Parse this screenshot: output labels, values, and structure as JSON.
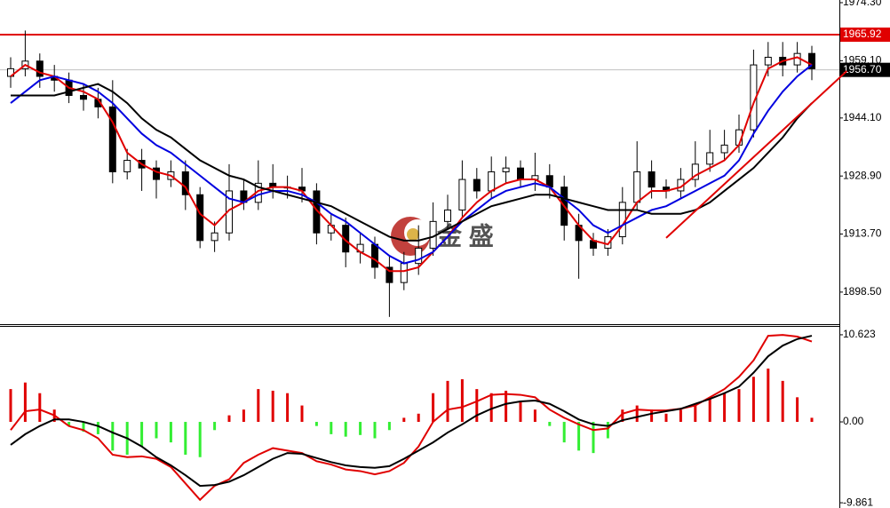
{
  "chart_data": [
    {
      "type": "candlestick",
      "watermark": "金 盛",
      "up_color": "#ffffff",
      "down_color": "#000000",
      "open": [
        1955,
        1957,
        1959,
        1955,
        1954,
        1950,
        1949,
        1947,
        1930,
        1933,
        1931,
        1928,
        1930,
        1924,
        1912,
        1914,
        1925,
        1922,
        1927,
        1926,
        1926,
        1925,
        1914,
        1916,
        1909,
        1911,
        1905,
        1901,
        1906,
        1910,
        1917,
        1920,
        1928,
        1925,
        1930,
        1931,
        1928,
        1929,
        1926,
        1916,
        1912,
        1910,
        1913,
        1922,
        1930,
        1926,
        1925,
        1928,
        1932,
        1935,
        1937,
        1941,
        1958,
        1960,
        1958,
        1961
      ],
      "high": [
        1960,
        1967,
        1961,
        1958,
        1956,
        1953,
        1952,
        1954,
        1936,
        1936,
        1933,
        1933,
        1933,
        1926,
        1917,
        1932,
        1928,
        1933,
        1932,
        1929,
        1931,
        1927,
        1919,
        1918,
        1914,
        1913,
        1908,
        1909,
        1916,
        1922,
        1924,
        1933,
        1931,
        1934,
        1934,
        1933,
        1935,
        1932,
        1929,
        1919,
        1914,
        1915,
        1926,
        1938,
        1933,
        1928,
        1931,
        1938,
        1941,
        1941,
        1945,
        1962,
        1964,
        1964,
        1964,
        1963
      ],
      "low": [
        1952,
        1955,
        1952,
        1951,
        1948,
        1946,
        1944,
        1927,
        1928,
        1925,
        1923,
        1926,
        1920,
        1910,
        1909,
        1912,
        1920,
        1920,
        1923,
        1923,
        1922,
        1911,
        1912,
        1905,
        1906,
        1902,
        1892,
        1899,
        1903,
        1908,
        1915,
        1918,
        1923,
        1923,
        1927,
        1926,
        1925,
        1923,
        1912,
        1902,
        1908,
        1908,
        1911,
        1920,
        1923,
        1923,
        1923,
        1926,
        1930,
        1933,
        1935,
        1939,
        1955,
        1955,
        1956,
        1954
      ],
      "close": [
        1957,
        1959,
        1955,
        1954,
        1950,
        1949,
        1947,
        1930,
        1933,
        1931,
        1928,
        1930,
        1924,
        1912,
        1914,
        1925,
        1922,
        1927,
        1926,
        1926,
        1925,
        1914,
        1916,
        1909,
        1911,
        1905,
        1901,
        1906,
        1910,
        1917,
        1920,
        1928,
        1925,
        1930,
        1931,
        1928,
        1929,
        1926,
        1916,
        1912,
        1910,
        1913,
        1922,
        1930,
        1926,
        1925,
        1928,
        1932,
        1935,
        1937,
        1941,
        1958,
        1960,
        1958,
        1961,
        1957
      ],
      "series": [
        {
          "color": "#e00000",
          "values": [
            1955,
            1958,
            1956,
            1955,
            1952,
            1951,
            1949,
            1943,
            1935,
            1932,
            1930,
            1929,
            1926,
            1919,
            1916,
            1920,
            1922,
            1925,
            1926,
            1926,
            1925,
            1920,
            1916,
            1912,
            1909,
            1907,
            1904,
            1904,
            1905,
            1909,
            1913,
            1918,
            1922,
            1925,
            1927,
            1928,
            1928,
            1926,
            1921,
            1916,
            1912,
            1911,
            1916,
            1922,
            1925,
            1925,
            1926,
            1929,
            1931,
            1933,
            1937,
            1948,
            1957,
            1959,
            1960,
            1958
          ]
        },
        {
          "color": "#0000e0",
          "values": [
            1948,
            1951,
            1954,
            1955,
            1954,
            1953,
            1951,
            1948,
            1944,
            1940,
            1937,
            1935,
            1932,
            1929,
            1926,
            1923,
            1922,
            1924,
            1925,
            1925,
            1924,
            1922,
            1919,
            1917,
            1914,
            1911,
            1908,
            1906,
            1907,
            1909,
            1913,
            1917,
            1920,
            1923,
            1925,
            1926,
            1927,
            1926,
            1923,
            1920,
            1916,
            1914,
            1916,
            1918,
            1920,
            1921,
            1923,
            1925,
            1927,
            1929,
            1933,
            1940,
            1946,
            1951,
            1955,
            1958
          ]
        },
        {
          "color": "#000000",
          "values": [
            1950,
            1950,
            1950,
            1950,
            1951,
            1952,
            1953,
            1951,
            1948,
            1944,
            1941,
            1939,
            1936,
            1933,
            1931,
            1929,
            1928,
            1926,
            1925,
            1924,
            1923,
            1922,
            1921,
            1919,
            1917,
            1915,
            1913,
            1912,
            1912,
            1913,
            1915,
            1917,
            1919,
            1921,
            1922,
            1923,
            1924,
            1924,
            1923,
            1922,
            1921,
            1920,
            1920,
            1920,
            1919,
            1919,
            1919,
            1920,
            1922,
            1925,
            1928,
            1931,
            1935,
            1939,
            1944,
            1948
          ]
        }
      ],
      "trendline": {
        "color": "#e00000",
        "x": [
          45,
          57.4
        ],
        "y": [
          1912.7,
          1956.4
        ]
      },
      "hlines": [
        {
          "value": 1965.92,
          "label": "1965.92",
          "color": "#e00000"
        },
        {
          "value": 1956.7,
          "label": "1956.70",
          "color": "#c0c0c0"
        }
      ],
      "ylim": [
        1890.1,
        1975.0
      ],
      "yticks": [
        {
          "value": 1974.3,
          "label": "1974.30"
        },
        {
          "value": 1959.1,
          "label": "1959.10"
        },
        {
          "value": 1944.1,
          "label": "1944.10"
        },
        {
          "value": 1928.9,
          "label": "1928.90"
        },
        {
          "value": 1913.7,
          "label": "1913.70"
        },
        {
          "value": 1898.5,
          "label": "1898.50"
        }
      ]
    },
    {
      "type": "macd",
      "up_color": "#e00000",
      "down_color": "#33ee33",
      "histogram": [
        4.0,
        4.8,
        3.5,
        1.5,
        -0.5,
        -1.2,
        -1.5,
        -3.5,
        -4.0,
        -3.0,
        -2.0,
        -2.5,
        -4.0,
        -4.3,
        -1.0,
        0.8,
        1.5,
        4.0,
        3.8,
        3.5,
        2.0,
        -0.5,
        -1.5,
        -1.8,
        -1.6,
        -2.0,
        -1.0,
        0.5,
        1.0,
        3.5,
        5.0,
        5.2,
        4.0,
        3.5,
        3.8,
        2.5,
        1.5,
        -0.5,
        -2.5,
        -3.5,
        -3.8,
        -2.0,
        1.5,
        2.0,
        1.5,
        1.0,
        1.5,
        2.0,
        3.0,
        3.5,
        4.0,
        5.5,
        6.5,
        5.0,
        3.0,
        0.5
      ],
      "series": [
        {
          "color": "#e00000",
          "values": [
            -1,
            1.3,
            1.5,
            0.8,
            -0.5,
            -1,
            -2,
            -4,
            -4.3,
            -4.2,
            -4.5,
            -5.5,
            -7.5,
            -9.5,
            -7.8,
            -7,
            -5,
            -4,
            -3.2,
            -3.5,
            -3.8,
            -4.8,
            -5.2,
            -5.8,
            -6,
            -6.4,
            -6,
            -5,
            -3,
            0,
            1.5,
            1.8,
            2.5,
            3.3,
            3.4,
            3.3,
            3.0,
            1.5,
            0.5,
            -0.3,
            -1,
            -0.8,
            1,
            1.5,
            1.4,
            1.4,
            1.6,
            2,
            3,
            4,
            5.5,
            7.5,
            10.5,
            10.6,
            10.4,
            9.8
          ]
        },
        {
          "color": "#000000",
          "values": [
            -2.8,
            -1.5,
            -0.5,
            0.3,
            0.3,
            0,
            -0.5,
            -1.3,
            -2,
            -3,
            -4.3,
            -5.3,
            -6.5,
            -7.8,
            -7.7,
            -7.3,
            -6.5,
            -5.5,
            -4.5,
            -3.8,
            -3.9,
            -4.4,
            -4.9,
            -5.3,
            -5.5,
            -5.6,
            -5.4,
            -4.5,
            -3.5,
            -2.5,
            -1.3,
            -0.3,
            0.8,
            1.6,
            2.2,
            2.5,
            2.6,
            2.2,
            1.3,
            0.3,
            -0.3,
            -0.5,
            0.2,
            0.6,
            1,
            1.3,
            1.6,
            2.2,
            2.8,
            3.5,
            4.3,
            6,
            8,
            9.3,
            10.1,
            10.5
          ]
        }
      ],
      "ylim": [
        -10.5,
        11.7
      ],
      "yticks": [
        10.623,
        {
          "value": 0,
          "label": "0.00"
        },
        -9.861
      ]
    }
  ]
}
